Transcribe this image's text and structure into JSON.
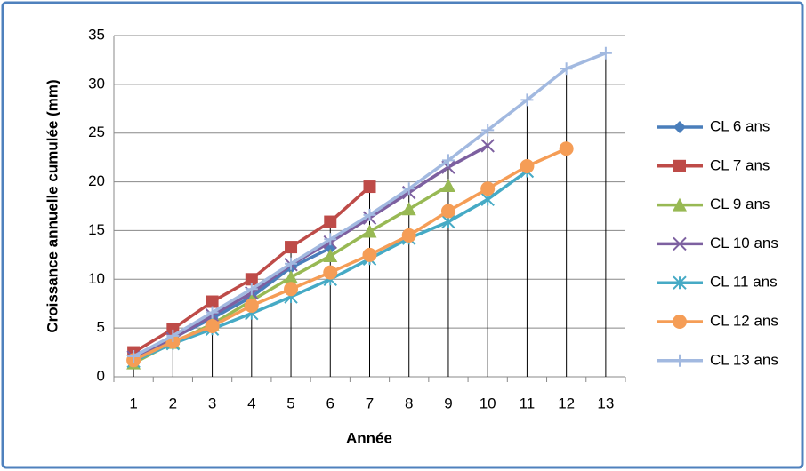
{
  "chart_data": {
    "type": "line",
    "y_label": "Croissance annuelle cumulée (mm)",
    "x_label": "Année",
    "categories": [
      "1",
      "2",
      "3",
      "4",
      "5",
      "6",
      "7",
      "8",
      "9",
      "10",
      "11",
      "12",
      "13"
    ],
    "ylim": [
      0,
      35
    ],
    "yticks": [
      0,
      5,
      10,
      15,
      20,
      25,
      30,
      35
    ],
    "grid": true,
    "drop_lines": true,
    "legend": "right",
    "series": [
      {
        "name": "CL 6 ans",
        "color": "#4a7ebb",
        "marker": "diamond",
        "values": [
          2.1,
          4.0,
          6.0,
          8.2,
          11.2,
          13.2,
          null,
          null,
          null,
          null,
          null,
          null,
          null
        ]
      },
      {
        "name": "CL 7 ans",
        "color": "#be4b48",
        "marker": "square",
        "values": [
          2.5,
          4.9,
          7.7,
          10.0,
          13.3,
          15.9,
          19.5,
          null,
          null,
          null,
          null,
          null,
          null
        ]
      },
      {
        "name": "CL 9 ans",
        "color": "#98b954",
        "marker": "triangle",
        "values": [
          1.4,
          3.5,
          5.4,
          7.8,
          10.2,
          12.4,
          14.9,
          17.2,
          19.6,
          null,
          null,
          null,
          null
        ]
      },
      {
        "name": "CL 10 ans",
        "color": "#7d60a0",
        "marker": "x",
        "values": [
          2.0,
          3.9,
          6.3,
          8.6,
          11.5,
          13.8,
          16.3,
          18.9,
          21.5,
          23.7,
          null,
          null,
          null
        ]
      },
      {
        "name": "CL 11 ans",
        "color": "#46aac5",
        "marker": "star",
        "values": [
          1.6,
          3.4,
          4.9,
          6.5,
          8.2,
          10.0,
          12.1,
          14.2,
          15.9,
          18.2,
          21.1,
          null,
          null
        ]
      },
      {
        "name": "CL 12 ans",
        "color": "#f59d56",
        "marker": "circle",
        "values": [
          1.7,
          3.6,
          5.2,
          7.3,
          9.0,
          10.7,
          12.5,
          14.5,
          17.0,
          19.3,
          21.6,
          23.4,
          null
        ]
      },
      {
        "name": "CL 13 ans",
        "color": "#a2b9e0",
        "marker": "plus",
        "values": [
          2.1,
          4.2,
          6.6,
          9.0,
          11.6,
          14.1,
          16.6,
          19.3,
          22.2,
          25.3,
          28.4,
          31.6,
          33.2
        ]
      }
    ]
  }
}
